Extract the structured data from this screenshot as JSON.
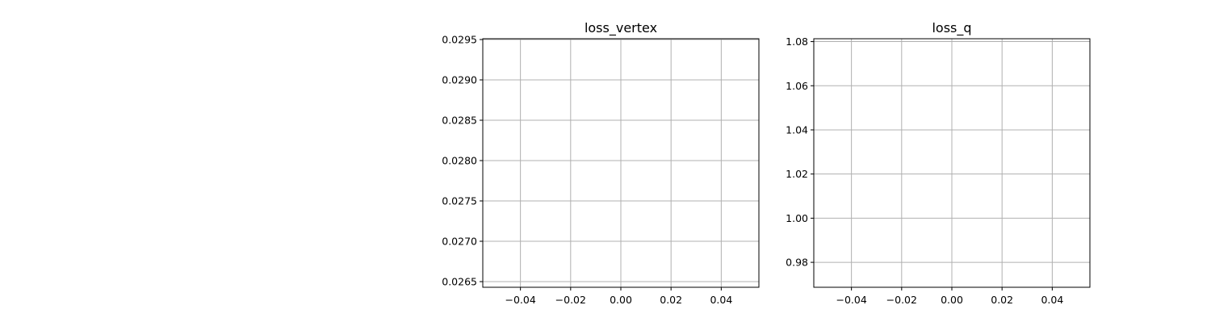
{
  "chart_data": [
    {
      "type": "line",
      "title": "loss_vertex",
      "xlabel": "",
      "ylabel": "",
      "xlim": [
        -0.055,
        0.055
      ],
      "ylim": [
        0.02643,
        0.02951
      ],
      "x_ticks": [
        -0.04,
        -0.02,
        0.0,
        0.02,
        0.04
      ],
      "x_tick_labels": [
        "−0.04",
        "−0.02",
        "0.00",
        "0.02",
        "0.04"
      ],
      "y_ticks": [
        0.0265,
        0.027,
        0.0275,
        0.028,
        0.0285,
        0.029,
        0.0295
      ],
      "y_tick_labels": [
        "0.0265",
        "0.0270",
        "0.0275",
        "0.0280",
        "0.0285",
        "0.0290",
        "0.0295"
      ],
      "grid": true,
      "series": []
    },
    {
      "type": "line",
      "title": "loss_q",
      "xlabel": "",
      "ylabel": "",
      "xlim": [
        -0.055,
        0.055
      ],
      "ylim": [
        0.9687,
        1.0813
      ],
      "x_ticks": [
        -0.04,
        -0.02,
        0.0,
        0.02,
        0.04
      ],
      "x_tick_labels": [
        "−0.04",
        "−0.02",
        "0.00",
        "0.02",
        "0.04"
      ],
      "y_ticks": [
        0.98,
        1.0,
        1.02,
        1.04,
        1.06,
        1.08
      ],
      "y_tick_labels": [
        "0.98",
        "1.00",
        "1.02",
        "1.04",
        "1.06",
        "1.08"
      ],
      "grid": true,
      "series": []
    }
  ]
}
